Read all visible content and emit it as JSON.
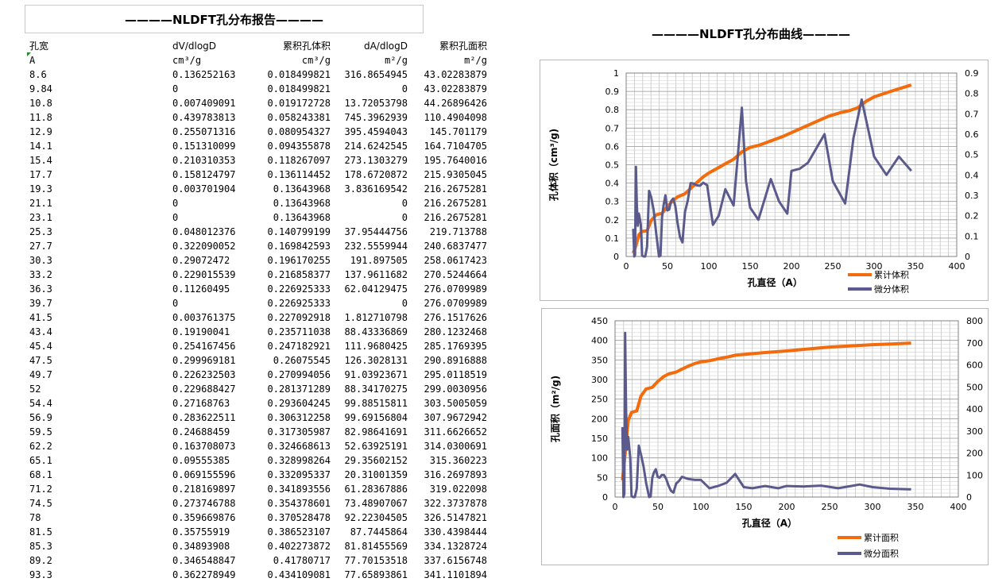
{
  "report_title": "————NLDFT孔分布报告————",
  "curve_title": "————NLDFT孔分布曲线————",
  "table": {
    "headers": [
      "孔宽",
      "dV/dlogD",
      "累积孔体积",
      "dA/dlogD",
      "累积孔面积"
    ],
    "units": [
      "A",
      "cm³/g",
      "cm³/g",
      "m²/g",
      "m²/g"
    ],
    "rows": [
      [
        "8.6",
        "0.136252163",
        "0.018499821",
        "316.8654945",
        "43.02283879"
      ],
      [
        "9.84",
        "0",
        "0.018499821",
        "0",
        "43.02283879"
      ],
      [
        "10.8",
        "0.007409091",
        "0.019172728",
        "13.72053798",
        "44.26896426"
      ],
      [
        "11.8",
        "0.439783813",
        "0.058243381",
        "745.3962939",
        "110.4904098"
      ],
      [
        "12.9",
        "0.255071316",
        "0.080954327",
        "395.4594043",
        "145.701179"
      ],
      [
        "14.1",
        "0.151310099",
        "0.094355878",
        "214.6242545",
        "164.7104705"
      ],
      [
        "15.4",
        "0.210310353",
        "0.118267097",
        "273.1303279",
        "195.7640016"
      ],
      [
        "17.7",
        "0.158124797",
        "0.136114452",
        "178.6720872",
        "215.9305045"
      ],
      [
        "19.3",
        "0.003701904",
        "0.13643968",
        "3.836169542",
        "216.2675281"
      ],
      [
        "21.1",
        "0",
        "0.13643968",
        "0",
        "216.2675281"
      ],
      [
        "23.1",
        "0",
        "0.13643968",
        "0",
        "216.2675281"
      ],
      [
        "25.3",
        "0.048012376",
        "0.140799199",
        "37.95444756",
        "219.713788"
      ],
      [
        "27.7",
        "0.322090052",
        "0.169842593",
        "232.5559944",
        "240.6837477"
      ],
      [
        "30.3",
        "0.29072472",
        "0.196170255",
        "191.897505",
        "258.0617423"
      ],
      [
        "33.2",
        "0.229015539",
        "0.216858377",
        "137.9611682",
        "270.5244664"
      ],
      [
        "36.3",
        "0.11260495",
        "0.226925333",
        "62.04129475",
        "276.0709989"
      ],
      [
        "39.7",
        "0",
        "0.226925333",
        "0",
        "276.0709989"
      ],
      [
        "41.5",
        "0.003761375",
        "0.227092918",
        "1.812710798",
        "276.1517626"
      ],
      [
        "43.4",
        "0.19190041",
        "0.235711038",
        "88.43336869",
        "280.1232468"
      ],
      [
        "45.4",
        "0.254167456",
        "0.247182921",
        "111.9680425",
        "285.1769395"
      ],
      [
        "47.5",
        "0.299969181",
        "0.26075545",
        "126.3028131",
        "290.8916888"
      ],
      [
        "49.7",
        "0.226232503",
        "0.270994056",
        "91.03923671",
        "295.0118519"
      ],
      [
        "52",
        "0.229688427",
        "0.281371289",
        "88.34170275",
        "299.0030956"
      ],
      [
        "54.4",
        "0.27168763",
        "0.293604245",
        "99.88515811",
        "303.5005059"
      ],
      [
        "56.9",
        "0.283622511",
        "0.306312258",
        "99.69156804",
        "307.9672942"
      ],
      [
        "59.5",
        "0.24688459",
        "0.317305987",
        "82.98641691",
        "311.6626652"
      ],
      [
        "62.2",
        "0.163708073",
        "0.324668613",
        "52.63925191",
        "314.0300691"
      ],
      [
        "65.1",
        "0.09555385",
        "0.328998264",
        "29.35602152",
        "315.360223"
      ],
      [
        "68.1",
        "0.069155596",
        "0.332095337",
        "20.31001359",
        "316.2697893"
      ],
      [
        "71.2",
        "0.218169897",
        "0.341893556",
        "61.28367886",
        "319.022098"
      ],
      [
        "74.5",
        "0.273746788",
        "0.354378601",
        "73.48907067",
        "322.3737878"
      ],
      [
        "78",
        "0.359669876",
        "0.370528478",
        "92.22304505",
        "326.5147821"
      ],
      [
        "81.5",
        "0.35755919",
        "0.386523107",
        "87.7445864",
        "330.4398444"
      ],
      [
        "85.3",
        "0.34893908",
        "0.402273872",
        "81.81455569",
        "334.1328724"
      ],
      [
        "89.2",
        "0.346548847",
        "0.41780717",
        "77.70153518",
        "337.6156748"
      ],
      [
        "93.3",
        "0.362278949",
        "0.434109081",
        "77.65893861",
        "341.1101894"
      ]
    ]
  },
  "chart_data": [
    {
      "type": "line",
      "xlabel": "孔直径（A）",
      "ylabel": "孔体积（cm³/g)",
      "xlim": [
        0,
        400
      ],
      "ylim": [
        0,
        1
      ],
      "y2lim": [
        0,
        0.9
      ],
      "xticks": [
        "0",
        "50",
        "100",
        "150",
        "200",
        "250",
        "300",
        "350",
        "400"
      ],
      "yticks": [
        "0",
        "0.1",
        "0.2",
        "0.3",
        "0.4",
        "0.5",
        "0.6",
        "0.7",
        "0.8",
        "0.9",
        "1"
      ],
      "y2ticks": [
        "0",
        "0.1",
        "0.2",
        "0.3",
        "0.4",
        "0.5",
        "0.6",
        "0.7",
        "0.8",
        "0.9"
      ],
      "grid": true,
      "legend_position": "bottom-right",
      "series": [
        {
          "name": "累计体积",
          "axis": "left",
          "color": "#f26b0c",
          "x": [
            8.6,
            11.8,
            15.4,
            19.3,
            25.3,
            30.3,
            36.3,
            43.4,
            49.7,
            56.9,
            62.2,
            71.2,
            78,
            85.3,
            93.3,
            100,
            110,
            120,
            130,
            140,
            150,
            160,
            175,
            190,
            200,
            215,
            230,
            245,
            260,
            270,
            280,
            290,
            300,
            320,
            345
          ],
          "y": [
            0.0185,
            0.0582,
            0.1183,
            0.1364,
            0.1408,
            0.1962,
            0.2269,
            0.2357,
            0.271,
            0.3063,
            0.3247,
            0.3419,
            0.3705,
            0.4023,
            0.4341,
            0.455,
            0.48,
            0.505,
            0.53,
            0.57,
            0.595,
            0.605,
            0.63,
            0.655,
            0.675,
            0.705,
            0.735,
            0.765,
            0.785,
            0.795,
            0.81,
            0.845,
            0.87,
            0.9,
            0.935
          ]
        },
        {
          "name": "微分体积",
          "axis": "right",
          "color": "#5a5a8c",
          "x": [
            8.6,
            9.84,
            10.8,
            11.8,
            12.9,
            14.1,
            15.4,
            17.7,
            19.3,
            21.1,
            23.1,
            25.3,
            27.7,
            30.3,
            33.2,
            36.3,
            39.7,
            41.5,
            43.4,
            45.4,
            47.5,
            49.7,
            52,
            54.4,
            56.9,
            59.5,
            62.2,
            65.1,
            68.1,
            71.2,
            74.5,
            78,
            81.5,
            85.3,
            89.2,
            93.3,
            98,
            105,
            112,
            120,
            130,
            140,
            145,
            150,
            160,
            175,
            185,
            195,
            200,
            210,
            220,
            230,
            240,
            250,
            265,
            275,
            285,
            300,
            315,
            330,
            345
          ],
          "y": [
            0.136,
            0,
            0.007,
            0.44,
            0.255,
            0.151,
            0.21,
            0.158,
            0.004,
            0,
            0,
            0.048,
            0.322,
            0.291,
            0.229,
            0.113,
            0,
            0.004,
            0.192,
            0.254,
            0.3,
            0.226,
            0.23,
            0.272,
            0.284,
            0.247,
            0.164,
            0.096,
            0.069,
            0.218,
            0.274,
            0.36,
            0.358,
            0.349,
            0.347,
            0.362,
            0.35,
            0.155,
            0.2,
            0.33,
            0.25,
            0.73,
            0.37,
            0.24,
            0.18,
            0.38,
            0.27,
            0.21,
            0.42,
            0.43,
            0.46,
            0.53,
            0.6,
            0.37,
            0.26,
            0.58,
            0.77,
            0.49,
            0.4,
            0.49,
            0.42
          ]
        }
      ]
    },
    {
      "type": "line",
      "xlabel": "孔直径（A）",
      "ylabel": "孔面积（m²/g)",
      "xlim": [
        0,
        400
      ],
      "ylim": [
        0,
        450
      ],
      "y2lim": [
        0,
        800
      ],
      "xticks": [
        "0",
        "50",
        "100",
        "150",
        "200",
        "250",
        "300",
        "350",
        "400"
      ],
      "yticks": [
        "0",
        "50",
        "100",
        "150",
        "200",
        "250",
        "300",
        "350",
        "400",
        "450"
      ],
      "y2ticks": [
        "0",
        "100",
        "200",
        "300",
        "400",
        "500",
        "600",
        "700",
        "800"
      ],
      "grid": true,
      "legend_position": "bottom-right",
      "series": [
        {
          "name": "累计面积",
          "axis": "left",
          "color": "#f26b0c",
          "x": [
            8.6,
            11.8,
            15.4,
            19.3,
            25.3,
            30.3,
            36.3,
            43.4,
            49.7,
            56.9,
            62.2,
            71.2,
            78,
            85.3,
            93.3,
            100,
            110,
            120,
            130,
            140,
            150,
            175,
            200,
            225,
            250,
            275,
            300,
            325,
            345
          ],
          "y": [
            43,
            110.5,
            195.8,
            216.3,
            219.7,
            258.1,
            276.1,
            280.1,
            295.0,
            308.0,
            314.0,
            319.0,
            326.5,
            334.1,
            341.1,
            345,
            348,
            353,
            357,
            362,
            364,
            369,
            373,
            378,
            383,
            386,
            389,
            391,
            393
          ]
        },
        {
          "name": "微分面积",
          "axis": "right",
          "color": "#5a5a8c",
          "x": [
            8.6,
            9.84,
            10.8,
            11.8,
            12.9,
            14.1,
            15.4,
            17.7,
            19.3,
            21.1,
            23.1,
            25.3,
            27.7,
            30.3,
            33.2,
            36.3,
            39.7,
            41.5,
            43.4,
            45.4,
            47.5,
            49.7,
            52,
            54.4,
            56.9,
            59.5,
            62.2,
            65.1,
            68.1,
            71.2,
            74.5,
            78,
            85,
            93,
            100,
            110,
            120,
            130,
            140,
            150,
            160,
            175,
            190,
            200,
            220,
            240,
            260,
            275,
            285,
            300,
            320,
            345
          ],
          "y": [
            317,
            0,
            14,
            745,
            395,
            215,
            273,
            179,
            4,
            0,
            0,
            38,
            233,
            192,
            138,
            62,
            0,
            2,
            88,
            112,
            126,
            91,
            88,
            100,
            100,
            83,
            53,
            29,
            20,
            61,
            73,
            92,
            82,
            78,
            78,
            40,
            50,
            65,
            105,
            45,
            40,
            50,
            40,
            50,
            48,
            52,
            40,
            50,
            57,
            45,
            38,
            35
          ]
        }
      ]
    }
  ]
}
